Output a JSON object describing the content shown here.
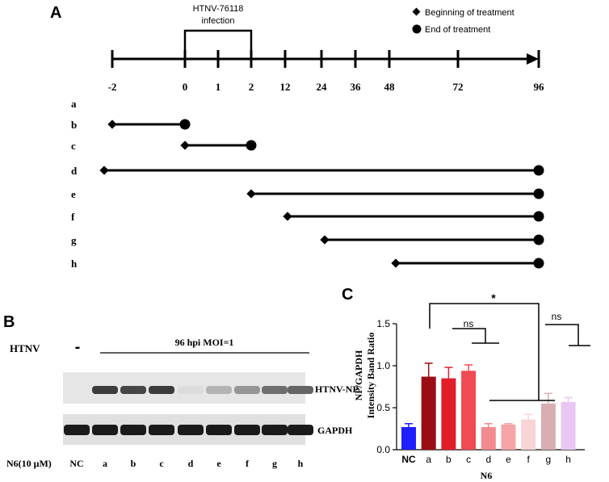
{
  "panelA": {
    "label": "A",
    "infection_label_1": "HTNV-76118",
    "infection_label_2": "infection",
    "legend": {
      "begin": "Beginning of treatment",
      "end": "End of treatment"
    },
    "timepoints": [
      "-2",
      "0",
      "1",
      "2",
      "12",
      "24",
      "36",
      "48",
      "72",
      "96"
    ],
    "treatments": [
      {
        "label": "a",
        "start": null,
        "end": null
      },
      {
        "label": "b",
        "start": "-2",
        "end": "0"
      },
      {
        "label": "c",
        "start": "0",
        "end": "2"
      },
      {
        "label": "d",
        "start": "-2",
        "end": "96"
      },
      {
        "label": "e",
        "start": "2",
        "end": "96"
      },
      {
        "label": "f",
        "start": "12",
        "end": "96"
      },
      {
        "label": "g",
        "start": "24",
        "end": "96"
      },
      {
        "label": "h",
        "start": "48",
        "end": "96"
      }
    ]
  },
  "panelB": {
    "label": "B",
    "htnv_label": "HTNV",
    "neg_sign": "-",
    "condition": "96 hpi MOI=1",
    "band1": "HTNV-NP",
    "band2": "GAPDH",
    "treatment_label": "N6(10 μM)",
    "lanes": [
      "NC",
      "a",
      "b",
      "c",
      "d",
      "e",
      "f",
      "g",
      "h"
    ],
    "np_intensity": [
      0.02,
      0.85,
      0.8,
      0.85,
      0.05,
      0.25,
      0.4,
      0.6,
      0.65
    ]
  },
  "panelC": {
    "label": "C",
    "sig_star": "*",
    "ns1": "ns",
    "ns2": "ns",
    "n6_label": "N6"
  },
  "chart_data": {
    "type": "bar",
    "categories": [
      "NC",
      "a",
      "b",
      "c",
      "d",
      "e",
      "f",
      "g",
      "h"
    ],
    "values": [
      0.27,
      0.87,
      0.85,
      0.94,
      0.27,
      0.3,
      0.36,
      0.55,
      0.57
    ],
    "errors": [
      0.04,
      0.16,
      0.13,
      0.07,
      0.04,
      0.01,
      0.06,
      0.12,
      0.05
    ],
    "colors": [
      "#1f1fff",
      "#9b0d14",
      "#e21d2a",
      "#f04a52",
      "#f28a8f",
      "#f5a5a8",
      "#f8d4d6",
      "#d8aeb2",
      "#e8c8f2"
    ],
    "ylabel": "NP/GAPDH Intensity Band Ratio",
    "ylabel_1": "NP/GAPDH",
    "ylabel_2": "Intensity Band Ratio",
    "yticks": [
      "0.0",
      "0.5",
      "1.0",
      "1.5"
    ],
    "ylim": [
      0,
      1.5
    ]
  }
}
